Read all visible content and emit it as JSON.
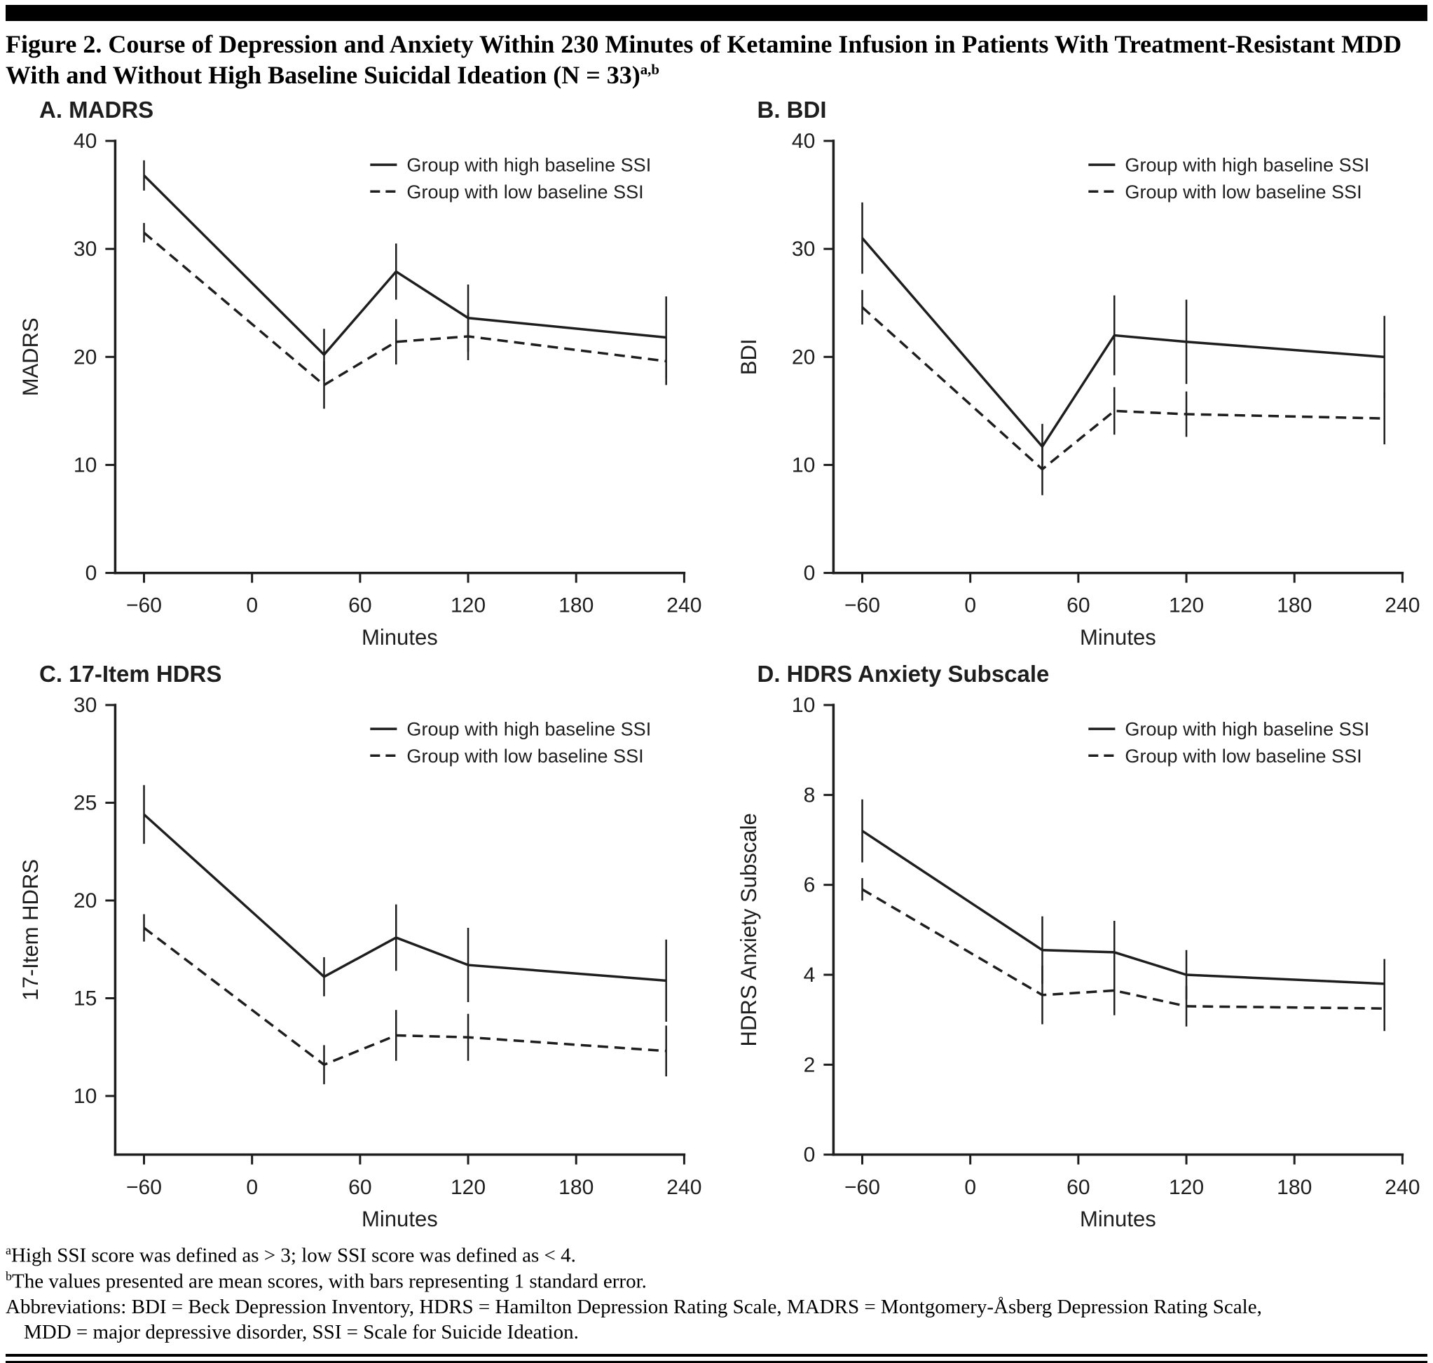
{
  "header": {
    "title_line1": "Figure 2. Course of Depression and Anxiety Within 230 Minutes of Ketamine Infusion in Patients With Treatment-Resistant MDD",
    "title_line2": "With and Without High Baseline Suicidal Ideation (N = 33)",
    "title_superscript": "a,b"
  },
  "colors": {
    "ink": "#1e1e1e",
    "rule": "#000000",
    "background": "#ffffff"
  },
  "chart_data": [
    {
      "id": "A",
      "panel_label": "A. MADRS",
      "type": "line",
      "xlabel": "Minutes",
      "ylabel": "MADRS",
      "xlim": [
        -76,
        240
      ],
      "ylim": [
        0,
        40
      ],
      "xtick_values": [
        -60,
        0,
        60,
        120,
        180,
        240
      ],
      "xtick_labels": [
        "−60",
        "0",
        "60",
        "120",
        "180",
        "240"
      ],
      "ytick_values": [
        0,
        10,
        20,
        30,
        40
      ],
      "ytick_labels": [
        "0",
        "10",
        "20",
        "30",
        "40"
      ],
      "legend_position": "top-right",
      "grid": false,
      "x": [
        -60,
        40,
        80,
        120,
        230
      ],
      "series": [
        {
          "name": "Group with high baseline SSI",
          "style": "solid",
          "values": [
            36.8,
            20.2,
            27.9,
            23.6,
            21.8
          ],
          "se": [
            1.4,
            2.4,
            2.6,
            3.1,
            3.8
          ]
        },
        {
          "name": "Group with low baseline SSI",
          "style": "dashed",
          "values": [
            31.5,
            17.4,
            21.4,
            21.9,
            19.6
          ],
          "se": [
            0.9,
            2.2,
            2.1,
            2.2,
            2.2
          ]
        }
      ]
    },
    {
      "id": "B",
      "panel_label": "B. BDI",
      "type": "line",
      "xlabel": "Minutes",
      "ylabel": "BDI",
      "xlim": [
        -76,
        240
      ],
      "ylim": [
        0,
        40
      ],
      "xtick_values": [
        -60,
        0,
        60,
        120,
        180,
        240
      ],
      "xtick_labels": [
        "−60",
        "0",
        "60",
        "120",
        "180",
        "240"
      ],
      "ytick_values": [
        0,
        10,
        20,
        30,
        40
      ],
      "ytick_labels": [
        "0",
        "10",
        "20",
        "30",
        "40"
      ],
      "legend_position": "top-right",
      "grid": false,
      "x": [
        -60,
        40,
        80,
        120,
        230
      ],
      "series": [
        {
          "name": "Group with high baseline SSI",
          "style": "solid",
          "values": [
            31.0,
            11.7,
            22.0,
            21.4,
            20.0
          ],
          "se": [
            3.3,
            2.1,
            3.7,
            3.9,
            3.8
          ]
        },
        {
          "name": "Group with low baseline SSI",
          "style": "dashed",
          "values": [
            24.6,
            9.6,
            15.0,
            14.7,
            14.3
          ],
          "se": [
            1.6,
            2.4,
            2.2,
            2.1,
            2.4
          ]
        }
      ]
    },
    {
      "id": "C",
      "panel_label": "C. 17-Item HDRS",
      "type": "line",
      "xlabel": "Minutes",
      "ylabel": "17-Item HDRS",
      "xlim": [
        -76,
        240
      ],
      "ylim": [
        7,
        30
      ],
      "xtick_values": [
        -60,
        0,
        60,
        120,
        180,
        240
      ],
      "xtick_labels": [
        "−60",
        "0",
        "60",
        "120",
        "180",
        "240"
      ],
      "ytick_values": [
        10,
        15,
        20,
        25,
        30
      ],
      "ytick_labels": [
        "10",
        "15",
        "20",
        "25",
        "30"
      ],
      "legend_position": "top-right",
      "grid": false,
      "x": [
        -60,
        40,
        80,
        120,
        230
      ],
      "series": [
        {
          "name": "Group with high baseline SSI",
          "style": "solid",
          "values": [
            24.4,
            16.1,
            18.1,
            16.7,
            15.9
          ],
          "se": [
            1.5,
            1.0,
            1.7,
            1.9,
            2.1
          ]
        },
        {
          "name": "Group with low baseline SSI",
          "style": "dashed",
          "values": [
            18.6,
            11.6,
            13.1,
            13.0,
            12.3
          ],
          "se": [
            0.7,
            1.0,
            1.3,
            1.2,
            1.3
          ]
        }
      ]
    },
    {
      "id": "D",
      "panel_label": "D. HDRS Anxiety Subscale",
      "type": "line",
      "xlabel": "Minutes",
      "ylabel": "HDRS Anxiety Subscale",
      "xlim": [
        -76,
        240
      ],
      "ylim": [
        0,
        10
      ],
      "xtick_values": [
        -60,
        0,
        60,
        120,
        180,
        240
      ],
      "xtick_labels": [
        "−60",
        "0",
        "60",
        "120",
        "180",
        "240"
      ],
      "ytick_values": [
        0,
        2,
        4,
        6,
        8,
        10
      ],
      "ytick_labels": [
        "0",
        "2",
        "4",
        "6",
        "8",
        "10"
      ],
      "legend_position": "top-right",
      "grid": false,
      "x": [
        -60,
        40,
        80,
        120,
        230
      ],
      "series": [
        {
          "name": "Group with high baseline SSI",
          "style": "solid",
          "values": [
            7.2,
            4.55,
            4.5,
            4.0,
            3.8
          ],
          "se": [
            0.7,
            0.75,
            0.7,
            0.55,
            0.55
          ]
        },
        {
          "name": "Group with low baseline SSI",
          "style": "dashed",
          "values": [
            5.9,
            3.55,
            3.65,
            3.3,
            3.25
          ],
          "se": [
            0.25,
            0.65,
            0.55,
            0.45,
            0.5
          ]
        }
      ]
    }
  ],
  "footnotes": [
    {
      "sup": "a",
      "lines": [
        "High SSI score was defined as > 3; low SSI score was defined as < 4."
      ]
    },
    {
      "sup": "b",
      "lines": [
        "The values presented are mean scores, with bars representing 1 standard error."
      ]
    },
    {
      "sup": "",
      "lines": [
        "Abbreviations: BDI = Beck Depression Inventory, HDRS = Hamilton Depression Rating Scale, MADRS = Montgomery-Åsberg Depression Rating Scale,",
        "MDD = major depressive disorder, SSI = Scale for Suicide Ideation."
      ]
    }
  ]
}
